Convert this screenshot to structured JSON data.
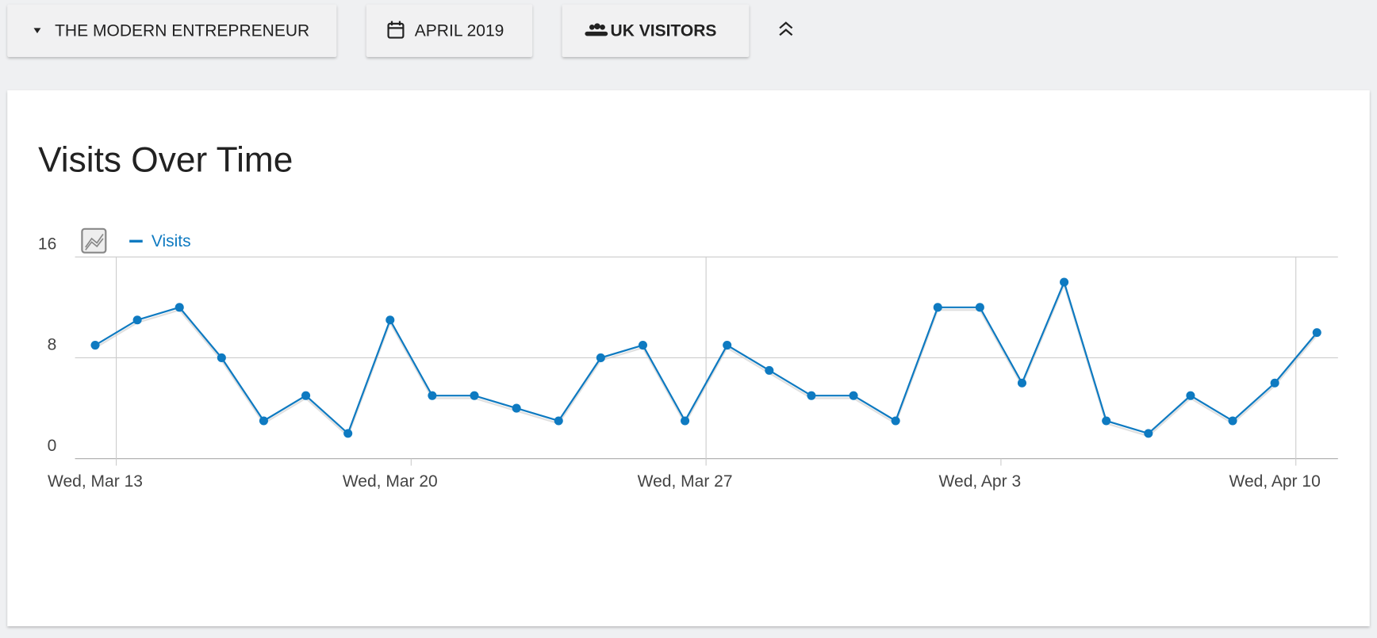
{
  "toolbar": {
    "site": "THE MODERN ENTREPRENEUR",
    "period": "APRIL 2019",
    "segment": "UK VISITORS"
  },
  "chart_data": {
    "type": "line",
    "title": "Visits Over Time",
    "x": [
      "Mar 13",
      "Mar 14",
      "Mar 15",
      "Mar 16",
      "Mar 17",
      "Mar 18",
      "Mar 19",
      "Mar 20",
      "Mar 21",
      "Mar 22",
      "Mar 23",
      "Mar 24",
      "Mar 25",
      "Mar 26",
      "Mar 27",
      "Mar 28",
      "Mar 29",
      "Mar 30",
      "Mar 31",
      "Apr 1",
      "Apr 2",
      "Apr 3",
      "Apr 4",
      "Apr 5",
      "Apr 6",
      "Apr 7",
      "Apr 8",
      "Apr 9",
      "Apr 10",
      "Apr 11"
    ],
    "series": [
      {
        "name": "Visits",
        "color": "#0e7ac1",
        "values": [
          9,
          11,
          12,
          8,
          3,
          5,
          2,
          11,
          5,
          5,
          4,
          3,
          8,
          9,
          3,
          9,
          7,
          5,
          5,
          3,
          12,
          12,
          6,
          14,
          3,
          2,
          5,
          3,
          6,
          10
        ]
      }
    ],
    "ylim": [
      0,
      16
    ],
    "yticks": [
      0,
      8,
      16
    ],
    "xticks": [
      {
        "value": "Mar 13",
        "label": "Wed, Mar 13"
      },
      {
        "value": "Mar 20",
        "label": "Wed, Mar 20"
      },
      {
        "value": "Mar 27",
        "label": "Wed, Mar 27"
      },
      {
        "value": "Apr 3",
        "label": "Wed, Apr 3"
      },
      {
        "value": "Apr 10",
        "label": "Wed, Apr 10"
      }
    ],
    "grid": true
  }
}
